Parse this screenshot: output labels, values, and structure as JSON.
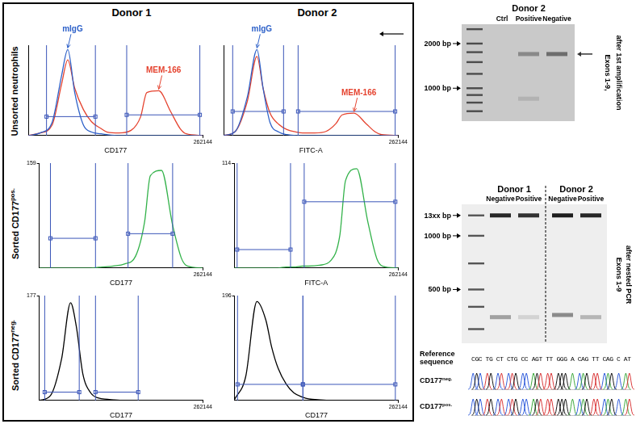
{
  "figure": {
    "column_titles": [
      "Donor 1",
      "Donor 2"
    ],
    "row_titles": [
      {
        "text": "Unsorted neutrophils"
      },
      {
        "text": "Sorted CD177",
        "sup": "pos."
      },
      {
        "text": "Sorted CD177",
        "sup": "neg."
      }
    ]
  },
  "chart_data": [
    {
      "type": "line",
      "x_label": "CD177",
      "log": "x",
      "xlim": [
        10,
        262144
      ],
      "xticks": [
        262144
      ],
      "ylim": [
        0,
        105
      ],
      "tick_labels": "x",
      "x": [
        10,
        20,
        40,
        70,
        100,
        150,
        250,
        400,
        700,
        1000,
        2000,
        4000,
        7000,
        10000,
        20000,
        40000,
        70000,
        100000,
        262144
      ],
      "series": [
        {
          "name": "mIgG",
          "color": "#2f62c9",
          "values": [
            0,
            3,
            15,
            70,
            100,
            50,
            12,
            4,
            2,
            1,
            0,
            0,
            0,
            0,
            0,
            0,
            0,
            0,
            0
          ]
        },
        {
          "name": "MEM-166",
          "color": "#e5432f",
          "values": [
            0,
            3,
            12,
            60,
            88,
            55,
            30,
            16,
            8,
            4,
            3,
            6,
            22,
            50,
            52,
            28,
            8,
            2,
            0
          ]
        }
      ],
      "gates": [
        {
          "x": [
            29,
            500
          ],
          "y": 22
        },
        {
          "x": [
            3100,
            220000
          ],
          "y": 24
        }
      ]
    },
    {
      "type": "line",
      "x_label": "FITC-A",
      "log": "x",
      "xlim": [
        10,
        262144
      ],
      "xticks": [
        262144
      ],
      "ylim": [
        0,
        105
      ],
      "tick_labels": "x",
      "x": [
        10,
        20,
        40,
        70,
        100,
        150,
        250,
        400,
        700,
        1000,
        2000,
        4000,
        7000,
        10000,
        20000,
        40000,
        70000,
        100000,
        262144
      ],
      "series": [
        {
          "name": "mIgG",
          "color": "#2f62c9",
          "values": [
            0,
            5,
            45,
            100,
            55,
            15,
            4,
            1,
            0,
            0,
            0,
            0,
            0,
            0,
            0,
            0,
            0,
            0,
            0
          ]
        },
        {
          "name": "MEM-166",
          "color": "#e5432f",
          "values": [
            0,
            5,
            40,
            92,
            55,
            26,
            13,
            7,
            4,
            3,
            3,
            5,
            14,
            24,
            26,
            14,
            4,
            1,
            0
          ]
        }
      ],
      "gates": [
        {
          "x": [
            17,
            330
          ],
          "y": 28
        },
        {
          "x": [
            770,
            220000
          ],
          "y": 28
        }
      ]
    },
    {
      "type": "line",
      "x_label": "CD177",
      "log": "x",
      "xlim": [
        10,
        262144
      ],
      "xticks": [
        262144
      ],
      "ylim": [
        0,
        159
      ],
      "yticks": [
        159
      ],
      "x": [
        10,
        20,
        40,
        70,
        100,
        150,
        250,
        400,
        700,
        1000,
        2000,
        4000,
        7000,
        10000,
        20000,
        40000,
        70000,
        100000,
        262144
      ],
      "series": [
        {
          "color": "#33b24a",
          "values": [
            0,
            0,
            0,
            0,
            0,
            0,
            0,
            1,
            2,
            3,
            6,
            18,
            70,
            140,
            148,
            65,
            14,
            3,
            0
          ]
        }
      ],
      "gates": [
        {
          "x": [
            20,
            330
          ],
          "y": 45
        },
        {
          "x": [
            2500,
            40000
          ],
          "y": 52
        }
      ]
    },
    {
      "type": "line",
      "x_label": "FITC-A",
      "log": "x",
      "xlim": [
        10,
        262144
      ],
      "xticks": [
        262144
      ],
      "ylim": [
        0,
        114
      ],
      "yticks": [
        114
      ],
      "x": [
        10,
        20,
        40,
        70,
        100,
        150,
        250,
        400,
        700,
        1000,
        2000,
        4000,
        7000,
        10000,
        20000,
        40000,
        70000,
        100000,
        262144
      ],
      "series": [
        {
          "color": "#33b24a",
          "values": [
            0,
            0,
            0,
            0,
            0,
            0,
            1,
            1,
            2,
            2,
            3,
            8,
            35,
            95,
            108,
            50,
            10,
            2,
            0
          ]
        }
      ],
      "gates": [
        {
          "x": [
            12,
            330
          ],
          "y": 20
        },
        {
          "x": [
            770,
            220000
          ],
          "y": 72
        }
      ]
    },
    {
      "type": "line",
      "x_label": "CD177",
      "log": "x",
      "xlim": [
        10,
        262144
      ],
      "xticks": [
        262144
      ],
      "ylim": [
        0,
        177
      ],
      "yticks": [
        177
      ],
      "x": [
        10,
        20,
        40,
        70,
        100,
        150,
        250,
        400,
        700,
        1000,
        2000,
        4000,
        7000,
        10000,
        20000,
        40000,
        70000,
        100000,
        262144
      ],
      "series": [
        {
          "color": "#000000",
          "values": [
            0,
            8,
            70,
            165,
            125,
            45,
            12,
            4,
            2,
            1,
            0,
            0,
            0,
            0,
            0,
            0,
            0,
            0,
            0
          ]
        }
      ],
      "gates": [
        {
          "x": [
            14,
            120
          ],
          "y": 14
        },
        {
          "x": [
            330,
            4700
          ],
          "y": 14
        }
      ]
    },
    {
      "type": "line",
      "x_label": "CD177",
      "log": "x",
      "xlim": [
        10,
        262144
      ],
      "xticks": [
        262144
      ],
      "ylim": [
        0,
        196
      ],
      "yticks": [
        196
      ],
      "x": [
        10,
        20,
        40,
        70,
        100,
        150,
        250,
        400,
        700,
        1000,
        2000,
        4000,
        7000,
        10000,
        20000,
        40000,
        70000,
        100000,
        262144
      ],
      "series": [
        {
          "color": "#000000",
          "values": [
            2,
            45,
            185,
            150,
            100,
            60,
            30,
            14,
            6,
            3,
            1,
            0,
            0,
            0,
            0,
            0,
            0,
            0,
            0
          ]
        }
      ],
      "gates": [
        {
          "x": [
            12,
            700
          ],
          "y": 30
        },
        {
          "x": [
            700,
            220000
          ],
          "y": 30
        }
      ]
    }
  ],
  "gels": [
    {
      "groups": [
        {
          "title": "Donor 2",
          "lanes": [
            "Ctrl",
            "Positive",
            "Negative"
          ]
        }
      ],
      "bp_range": [
        2700,
        600
      ],
      "markers": [
        {
          "value": 2000,
          "label": "2000 bp"
        },
        {
          "value": 1000,
          "label": "1000 bp"
        }
      ],
      "ladder": [
        2500,
        2000,
        1750,
        1500,
        1250,
        1000,
        900,
        800,
        700
      ],
      "bands": [
        [],
        [
          {
            "bp": 1700,
            "intensity": 0.35
          },
          {
            "bp": 850,
            "intensity": 0.12
          }
        ],
        [
          {
            "bp": 1700,
            "intensity": 0.5
          }
        ]
      ],
      "arrow_bp": 1700,
      "side_label": [
        "Exons 1-9,",
        "after 1st amplification"
      ]
    },
    {
      "groups": [
        {
          "title": "Donor 1",
          "lanes": [
            "Negative",
            "Positive"
          ]
        },
        {
          "title": "Donor 2",
          "lanes": [
            "Negative",
            "Positive"
          ]
        }
      ],
      "bp_range": [
        1500,
        250
      ],
      "markers": [
        {
          "value": 1300,
          "label": "13xx bp"
        },
        {
          "value": 1000,
          "label": "1000 bp"
        },
        {
          "value": 500,
          "label": "500 bp"
        }
      ],
      "ladder": [
        1300,
        1000,
        700,
        500,
        400,
        300
      ],
      "bands": [
        [
          {
            "bp": 1300,
            "intensity": 0.9
          },
          {
            "bp": 350,
            "intensity": 0.35
          }
        ],
        [
          {
            "bp": 1300,
            "intensity": 0.85
          },
          {
            "bp": 350,
            "intensity": 0.12
          }
        ],
        [
          {
            "bp": 1300,
            "intensity": 0.95
          },
          {
            "bp": 360,
            "intensity": 0.45
          }
        ],
        [
          {
            "bp": 1300,
            "intensity": 0.9
          },
          {
            "bp": 350,
            "intensity": 0.25
          }
        ]
      ],
      "side_label": [
        "Exons 1-9",
        "after nested PCR"
      ]
    }
  ],
  "sequencing": {
    "reference_label": "Reference sequence",
    "reference": "CGC TG CT CTG CC AGT TT GGG A CAG TT CAG C AT",
    "traces": [
      {
        "text": "CD177",
        "sup": "neg."
      },
      {
        "text": "CD177",
        "sup": "pos."
      }
    ]
  }
}
